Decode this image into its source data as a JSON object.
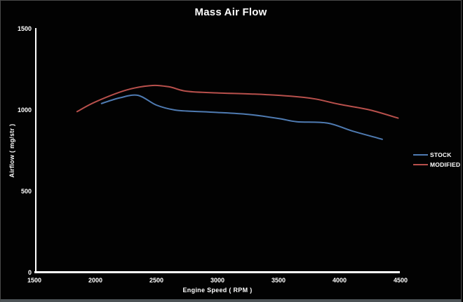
{
  "title": "Mass Air Flow",
  "colors": {
    "background": "#020202",
    "frame_border": "#4a4a4a",
    "frame_border_bottom": "#4d5356",
    "axis": "#ffffff",
    "text": "#ffffff",
    "stock_line": "#4f7bb2",
    "modified_line": "#b8504c"
  },
  "legend": {
    "items": [
      {
        "label": "STOCK",
        "color": "#4f7bb2"
      },
      {
        "label": "MODIFIED",
        "color": "#b8504c"
      }
    ]
  },
  "chart_data": {
    "type": "line",
    "title": "Mass Air Flow",
    "xlabel": "Engine Speed ( RPM )",
    "ylabel": "Airflow ( mg/str )",
    "xlim": [
      1500,
      4500
    ],
    "ylim": [
      0,
      1500
    ],
    "x_ticks": [
      1500,
      2000,
      2500,
      3000,
      3500,
      4000,
      4500
    ],
    "y_ticks": [
      0,
      500,
      1000,
      1500
    ],
    "grid": false,
    "legend_position": "right",
    "background": "black",
    "series": [
      {
        "name": "STOCK",
        "color": "#4f7bb2",
        "points": [
          [
            2050,
            1040
          ],
          [
            2200,
            1075
          ],
          [
            2350,
            1090
          ],
          [
            2500,
            1030
          ],
          [
            2650,
            1000
          ],
          [
            2800,
            992
          ],
          [
            3000,
            985
          ],
          [
            3250,
            973
          ],
          [
            3500,
            948
          ],
          [
            3650,
            928
          ],
          [
            3900,
            920
          ],
          [
            4100,
            872
          ],
          [
            4350,
            820
          ]
        ]
      },
      {
        "name": "MODIFIED",
        "color": "#b8504c",
        "points": [
          [
            1850,
            990
          ],
          [
            2000,
            1050
          ],
          [
            2250,
            1122
          ],
          [
            2450,
            1150
          ],
          [
            2600,
            1143
          ],
          [
            2750,
            1115
          ],
          [
            3000,
            1105
          ],
          [
            3300,
            1098
          ],
          [
            3600,
            1085
          ],
          [
            3800,
            1068
          ],
          [
            4000,
            1035
          ],
          [
            4250,
            1000
          ],
          [
            4480,
            950
          ]
        ]
      }
    ]
  }
}
